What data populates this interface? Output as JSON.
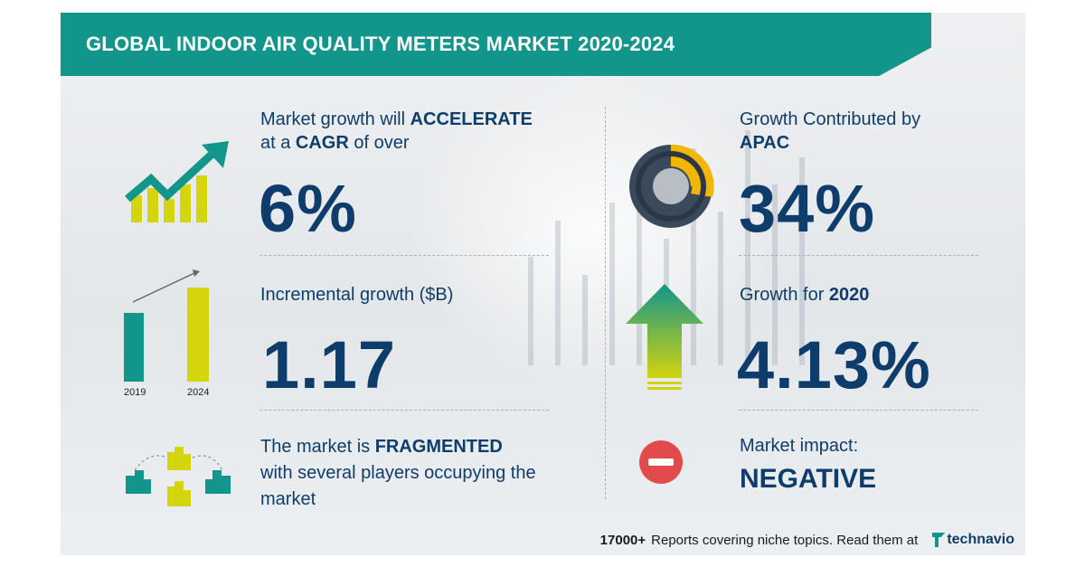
{
  "header": {
    "title": "GLOBAL INDOOR AIR QUALITY METERS MARKET 2020-2024"
  },
  "stats": {
    "cagr": {
      "line1_prefix": "Market growth will ",
      "line1_strong": "ACCELERATE",
      "line2_prefix": "at a ",
      "line2_strong": "CAGR",
      "line2_suffix": " of over",
      "value": "6%"
    },
    "incremental": {
      "label": "Incremental growth ($B)",
      "value": "1.17",
      "year_start": "2019",
      "year_end": "2024"
    },
    "structure": {
      "line1_prefix": "The market is ",
      "line1_strong": "FRAGMENTED",
      "line2": "with several players occupying the",
      "line3": "market"
    },
    "region": {
      "line1": "Growth Contributed by",
      "line2_strong": "APAC",
      "value": "34%"
    },
    "yoy": {
      "label_prefix": "Growth for ",
      "label_strong": "2020",
      "value": "4.13%"
    },
    "impact": {
      "label": "Market impact:",
      "value": "NEGATIVE"
    }
  },
  "footer": {
    "count": "17000+",
    "text": "Reports covering niche topics. Read them at",
    "brand": "technavio"
  },
  "colors": {
    "teal": "#12958a",
    "navy": "#0f3d6b",
    "yellow": "#d4d40f",
    "red": "#e24b4b",
    "gold": "#f2b705",
    "slate": "#3a4a5c"
  }
}
